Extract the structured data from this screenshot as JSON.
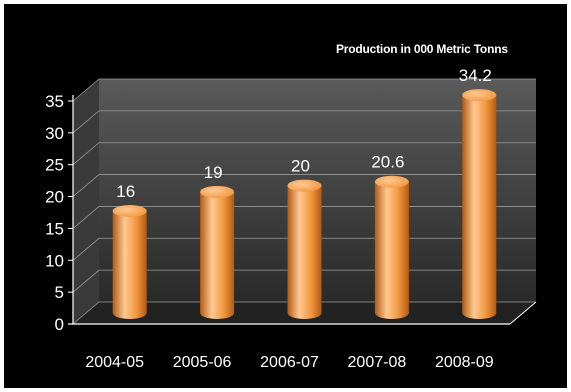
{
  "chart_data": {
    "type": "bar",
    "title": "Production in 000 Metric Tonns",
    "categories": [
      "2004-05",
      "2005-06",
      "2006-07",
      "2007-08",
      "2008-09"
    ],
    "values": [
      16,
      19,
      20,
      20.6,
      34.2
    ],
    "data_labels": [
      "16",
      "19",
      "20",
      "20.6",
      "34.2"
    ],
    "ylim": [
      0,
      35
    ],
    "yticks": [
      0,
      5,
      10,
      15,
      20,
      25,
      30,
      35
    ],
    "xlabel": "",
    "ylabel": "",
    "grid": true,
    "legend": "none"
  },
  "colors": {
    "background": "#000000",
    "frame": "#ffffff",
    "bar": "#f0963c",
    "bar_light": "#ffc994",
    "bar_dark": "#b35a14",
    "wall_top": "#5a5a5a",
    "wall_bottom": "#2a2a2a",
    "text": "#ffffff"
  }
}
